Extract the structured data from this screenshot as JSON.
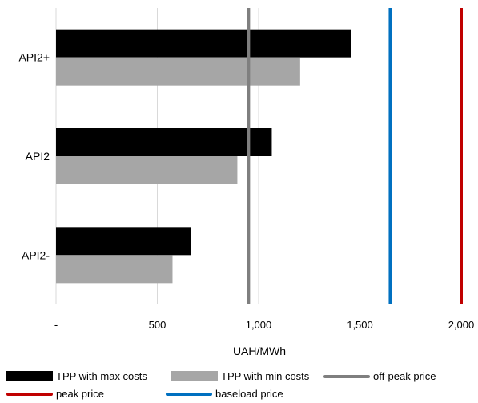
{
  "chart_data": {
    "type": "bar",
    "orientation": "horizontal",
    "title": "",
    "xlabel": "UAH/MWh",
    "ylabel": "",
    "categories": [
      "API2+",
      "API2",
      "API2-"
    ],
    "series": [
      {
        "name": "TPP with max costs",
        "color": "#000000",
        "values": [
          1455,
          1065,
          665
        ]
      },
      {
        "name": "TPP with min costs",
        "color": "#a6a6a6",
        "values": [
          1205,
          895,
          575
        ]
      }
    ],
    "reference_lines": [
      {
        "name": "off-peak price",
        "color": "#7f7f7f",
        "value": 950
      },
      {
        "name": "peak price",
        "color": "#c00000",
        "value": 2000
      },
      {
        "name": "baseload price",
        "color": "#0070c0",
        "value": 1650
      }
    ],
    "xlim": [
      0,
      2000
    ],
    "x_ticks": [
      0,
      500,
      1000,
      1500,
      2000
    ],
    "x_tick_labels": [
      "-",
      "500",
      "1,000",
      "1,500",
      "2,000"
    ],
    "grid": "vertical",
    "legend_position": "bottom"
  }
}
